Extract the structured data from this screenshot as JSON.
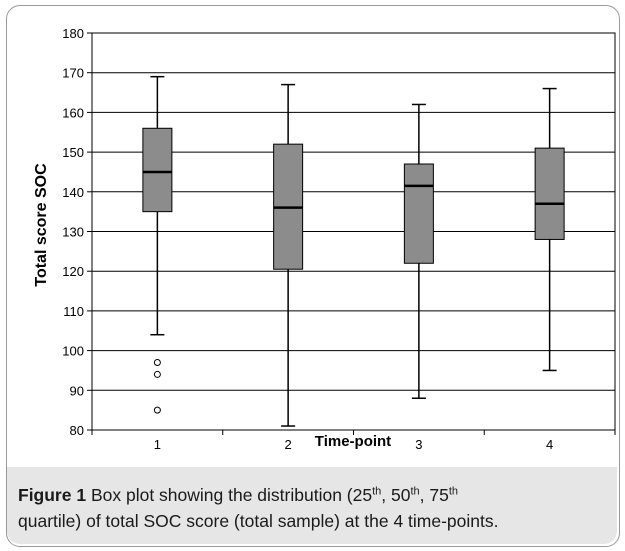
{
  "chart_data": {
    "type": "boxplot",
    "xlabel": "Time-point",
    "ylabel": "Total score SOC",
    "ylim": [
      80,
      180
    ],
    "yticks": [
      80,
      90,
      100,
      110,
      120,
      130,
      140,
      150,
      160,
      170,
      180
    ],
    "grid": true,
    "categories": [
      "1",
      "2",
      "3",
      "4"
    ],
    "boxes": [
      {
        "label": "1",
        "whisker_low": 104,
        "q1": 135,
        "median": 145,
        "q3": 156,
        "whisker_high": 169,
        "outliers": [
          97,
          94,
          85
        ]
      },
      {
        "label": "2",
        "whisker_low": 81,
        "q1": 120.5,
        "median": 136,
        "q3": 152,
        "whisker_high": 167,
        "outliers": []
      },
      {
        "label": "3",
        "whisker_low": 88,
        "q1": 122,
        "median": 141.5,
        "q3": 147,
        "whisker_high": 162,
        "outliers": []
      },
      {
        "label": "4",
        "whisker_low": 95,
        "q1": 128,
        "median": 137,
        "q3": 151,
        "whisker_high": 166,
        "outliers": []
      }
    ],
    "colors": {
      "box_fill": "#8c8c8c",
      "stroke": "#000000",
      "grid": "#000000"
    }
  },
  "caption": {
    "lead": "Figure 1",
    "text": "Box plot showing the distribution (25",
    "sup1": "th",
    "t2": ", 50",
    "sup2": "th",
    "t3": ", 75",
    "sup3": "th",
    "t4": "quartile) of total SOC score (total sample) at the 4 time-points."
  }
}
